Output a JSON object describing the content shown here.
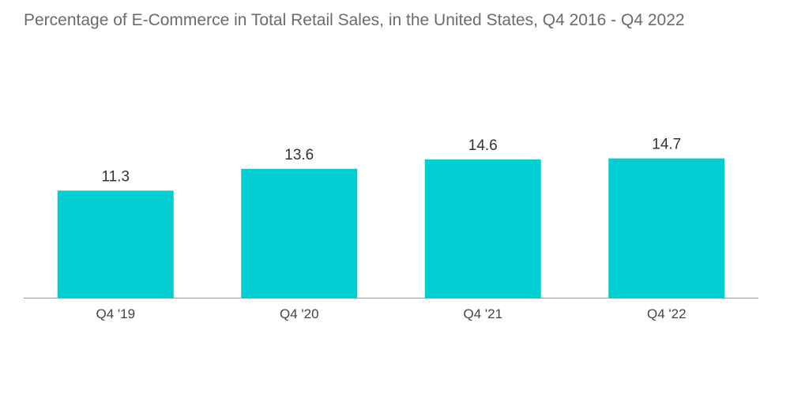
{
  "chart_data": {
    "type": "bar",
    "title": "Percentage of E-Commerce in Total Retail Sales, in the United States, Q4 2016 - Q4 2022",
    "categories": [
      "Q4 '19",
      "Q4 '20",
      "Q4 '21",
      "Q4 '22"
    ],
    "values": [
      11.3,
      13.6,
      14.6,
      14.7
    ],
    "value_labels": [
      "11.3",
      "13.6",
      "14.6",
      "14.7"
    ],
    "xlabel": "",
    "ylabel": "",
    "ylim": [
      0,
      18
    ],
    "grid": false,
    "bar_color": "#00CED1",
    "axis_color": "#999999"
  }
}
